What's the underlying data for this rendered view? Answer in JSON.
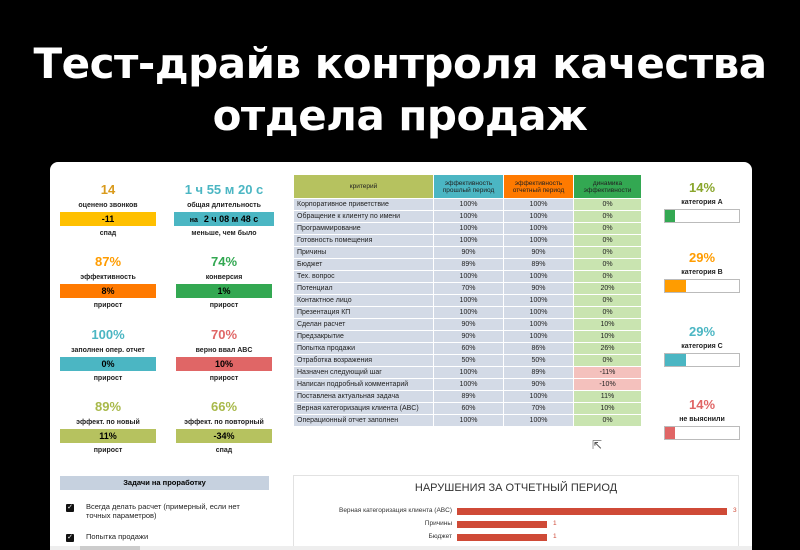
{
  "headline": {
    "line1": "Тест-драйв контроля качества",
    "line2": "отдела продаж"
  },
  "colors": {
    "orange": "#ff9c00",
    "green": "#33a852",
    "teal": "#4bb6c3",
    "red": "#e06666",
    "olive": "#b6c25f",
    "yellow": "#ffc000",
    "blue": "#1c6fa6"
  },
  "kpis": [
    {
      "value": "14",
      "caption": "оценено звонков",
      "bar": "-11",
      "sub": "спад"
    },
    {
      "value": "1 ч 55 м 20 с",
      "caption": "общая длительность",
      "bar_prefix": "на",
      "bar": "2 ч 08 м 48 с",
      "sub": "меньше, чем было"
    },
    {
      "value": "87%",
      "caption": "эффективность",
      "bar": "8%",
      "sub": "прирост"
    },
    {
      "value": "74%",
      "caption": "конверсия",
      "bar": "1%",
      "sub": "прирост"
    },
    {
      "value": "100%",
      "caption": "заполнен опер. отчет",
      "bar": "0%",
      "sub": "прирост"
    },
    {
      "value": "70%",
      "caption": "верно ввал ABC",
      "bar": "10%",
      "sub": "прирост"
    },
    {
      "value": "89%",
      "caption": "эффект. по новый",
      "bar": "11%",
      "sub": "прирост"
    },
    {
      "value": "66%",
      "caption": "эффект. по повторный",
      "bar": "-34%",
      "sub": "спад"
    }
  ],
  "table": {
    "headers": [
      "критерий",
      "эффективность прошлый период",
      "эффективность отчетный период",
      "динамика эффективности"
    ],
    "rows": [
      [
        "Корпоративное приветствие",
        "100%",
        "100%",
        "0%"
      ],
      [
        "Обращение к клиенту по имени",
        "100%",
        "100%",
        "0%"
      ],
      [
        "Программирование",
        "100%",
        "100%",
        "0%"
      ],
      [
        "Готовность помещения",
        "100%",
        "100%",
        "0%"
      ],
      [
        "Причины",
        "90%",
        "90%",
        "0%"
      ],
      [
        "Бюджет",
        "89%",
        "89%",
        "0%"
      ],
      [
        "Тех. вопрос",
        "100%",
        "100%",
        "0%"
      ],
      [
        "Потенциал",
        "70%",
        "90%",
        "20%"
      ],
      [
        "Контактное лицо",
        "100%",
        "100%",
        "0%"
      ],
      [
        "Презентация КП",
        "100%",
        "100%",
        "0%"
      ],
      [
        "Сделан расчет",
        "90%",
        "100%",
        "10%"
      ],
      [
        "Предзакрытие",
        "90%",
        "100%",
        "10%"
      ],
      [
        "Попытка продажи",
        "60%",
        "86%",
        "26%"
      ],
      [
        "Отработка возражения",
        "50%",
        "50%",
        "0%"
      ],
      [
        "Назначен следующий шаг",
        "100%",
        "89%",
        "-11%"
      ],
      [
        "Написан подробный комментарий",
        "100%",
        "90%",
        "-10%"
      ],
      [
        "Поставлена актуальная задача",
        "89%",
        "100%",
        "11%"
      ],
      [
        "Верная категоризация клиента (ABC)",
        "60%",
        "70%",
        "10%"
      ],
      [
        "Операционный отчет заполнен",
        "100%",
        "100%",
        "0%"
      ]
    ]
  },
  "categories": [
    {
      "pct": "14%",
      "label": "категория A",
      "level": 0.14,
      "color": "#33a852",
      "pct_color": "#8aa62d"
    },
    {
      "pct": "29%",
      "label": "категория B",
      "level": 0.29,
      "color": "#ff9c00",
      "pct_color": "#ff9c00"
    },
    {
      "pct": "29%",
      "label": "категория C",
      "level": 0.29,
      "color": "#4bb6c3",
      "pct_color": "#4bb6c3"
    },
    {
      "pct": "14%",
      "label": "не выяснили",
      "level": 0.14,
      "color": "#e06666",
      "pct_color": "#e06666"
    }
  ],
  "tasks": {
    "title": "Задачи на проработку",
    "items": [
      {
        "checked": "✓",
        "text": "Всегда делать расчет (примерный, если нет точных параметров)"
      },
      {
        "checked": "✓",
        "text": "Попытка продажи"
      }
    ]
  },
  "violations": {
    "title": "НАРУШЕНИЯ ЗА ОТЧЕТНЫЙ ПЕРИОД",
    "items": [
      {
        "label": "Верная категоризация клиента (ABC)",
        "count": 3
      },
      {
        "label": "Причины",
        "count": 1
      },
      {
        "label": "Бюджет",
        "count": 1
      }
    ]
  }
}
